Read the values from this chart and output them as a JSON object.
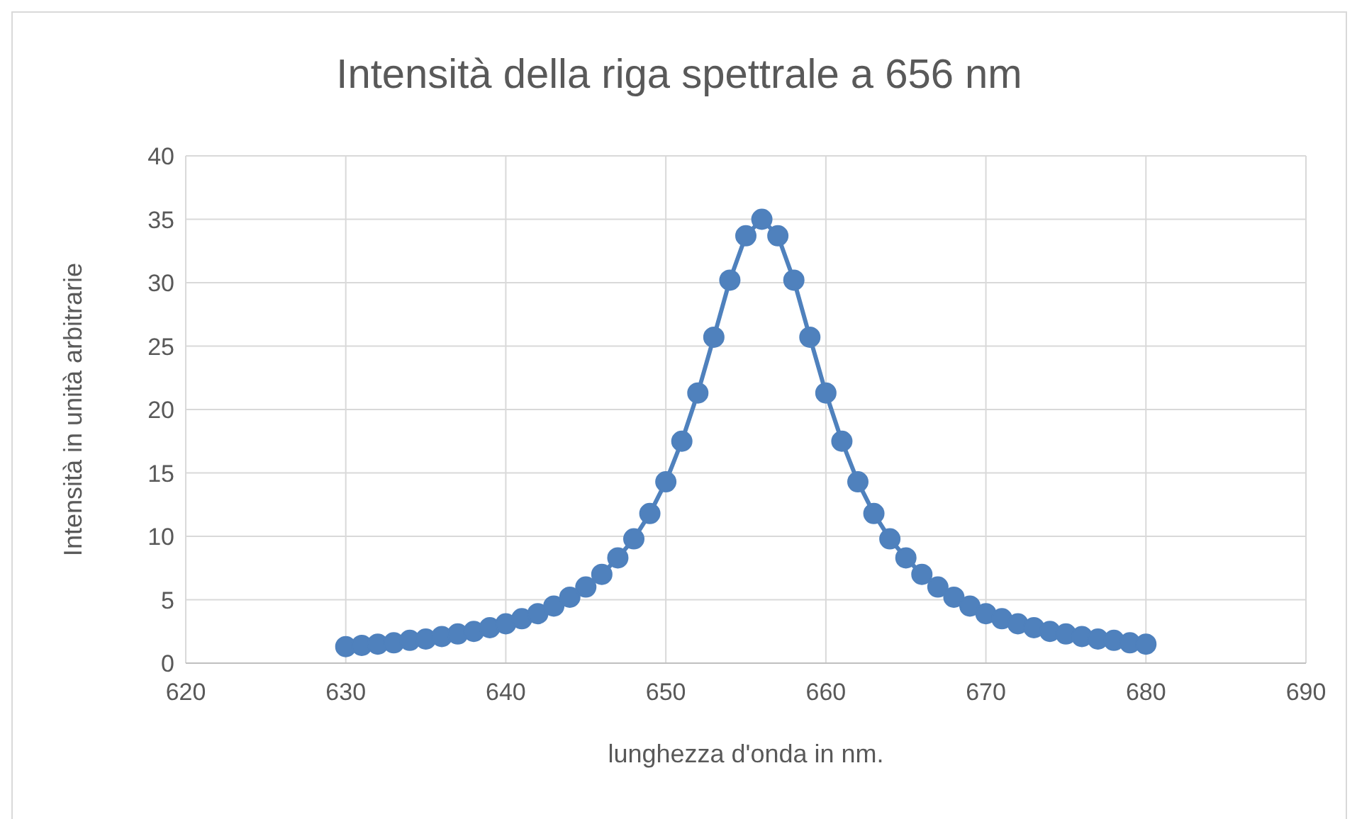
{
  "chart_data": {
    "type": "line",
    "title": "Intensità della riga spettrale a 656 nm",
    "xlabel": "lunghezza d'onda in nm.",
    "ylabel": "Intensità in unità arbitrarie",
    "x": [
      630,
      631,
      632,
      633,
      634,
      635,
      636,
      637,
      638,
      639,
      640,
      641,
      642,
      643,
      644,
      645,
      646,
      647,
      648,
      649,
      650,
      651,
      652,
      653,
      654,
      655,
      656,
      657,
      658,
      659,
      660,
      661,
      662,
      663,
      664,
      665,
      666,
      667,
      668,
      669,
      670,
      671,
      672,
      673,
      674,
      675,
      676,
      677,
      678,
      679,
      680
    ],
    "series": [
      {
        "color": "#4f81bd",
        "values": [
          1.3,
          1.4,
          1.5,
          1.6,
          1.8,
          1.9,
          2.1,
          2.3,
          2.5,
          2.8,
          3.1,
          3.5,
          3.9,
          4.5,
          5.2,
          6.0,
          7.0,
          8.3,
          9.8,
          11.8,
          14.3,
          17.5,
          21.3,
          25.7,
          30.2,
          33.7,
          35.0,
          33.7,
          30.2,
          25.7,
          21.3,
          17.5,
          14.3,
          11.8,
          9.8,
          8.3,
          7.0,
          6.0,
          5.2,
          4.5,
          3.9,
          3.5,
          3.1,
          2.8,
          2.5,
          2.3,
          2.1,
          1.9,
          1.8,
          1.6,
          1.5
        ]
      }
    ],
    "xlim": [
      620,
      690
    ],
    "xticks": [
      620,
      630,
      640,
      650,
      660,
      670,
      680,
      690
    ],
    "ylim": [
      0,
      40
    ],
    "yticks": [
      0,
      5,
      10,
      15,
      20,
      25,
      30,
      35,
      40
    ],
    "grid": true,
    "marker": "circle",
    "line_style": "solid",
    "legend": false
  }
}
